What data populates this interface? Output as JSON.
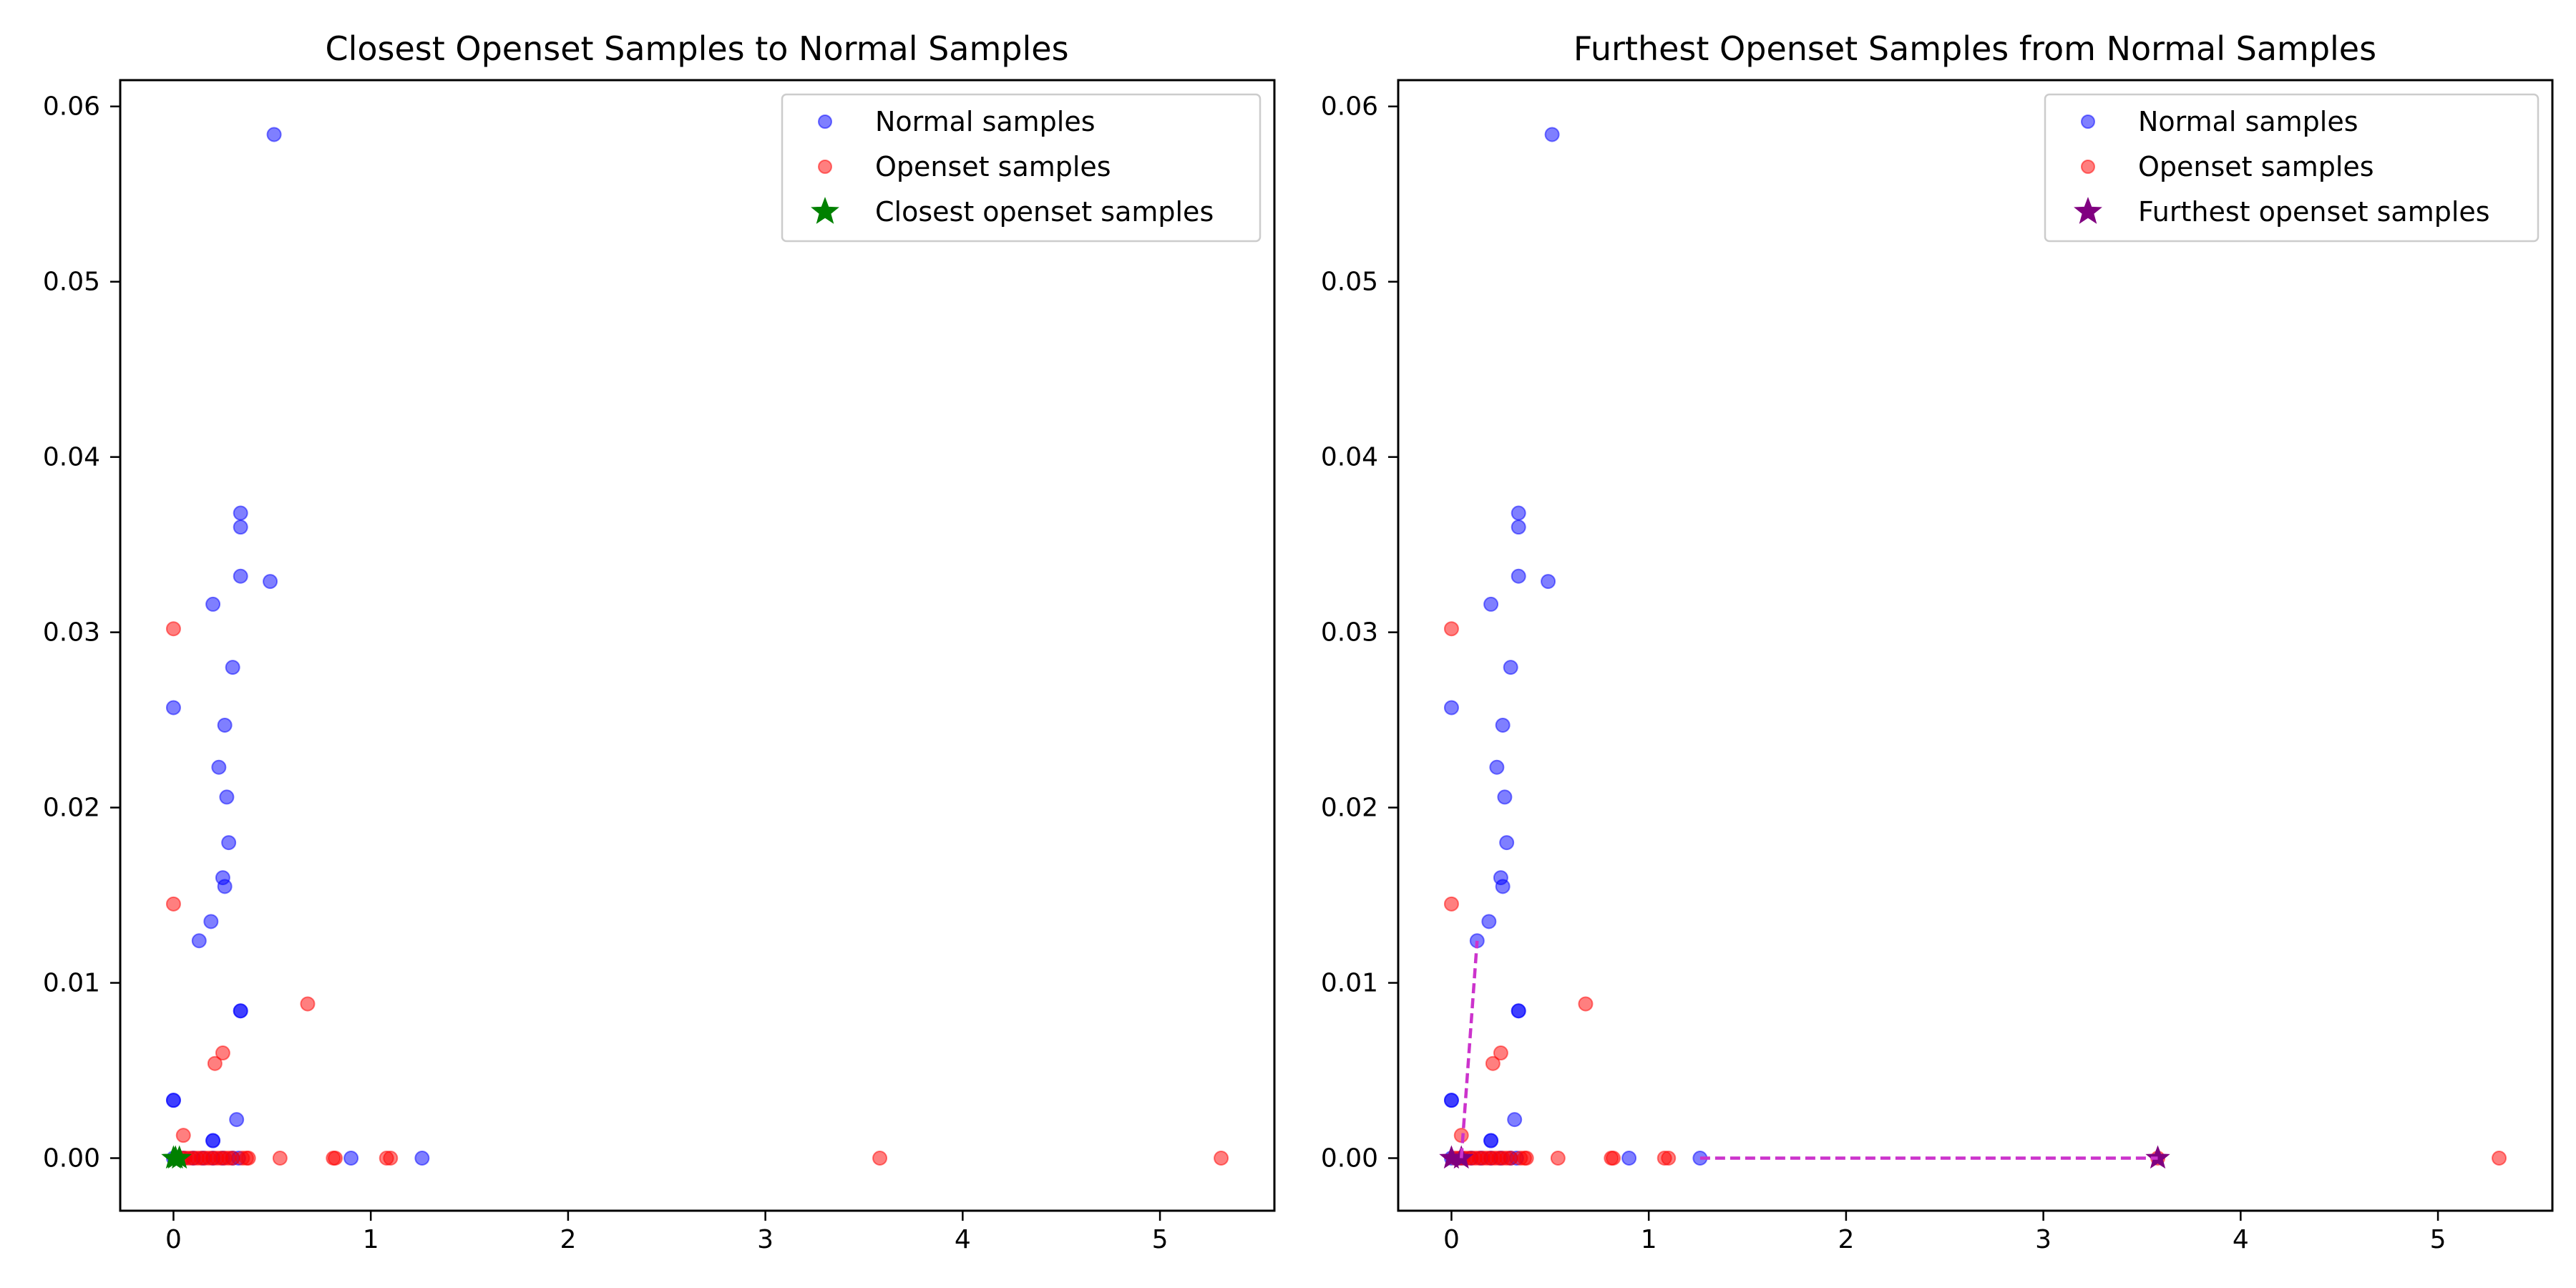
{
  "chart_data": [
    {
      "type": "scatter",
      "title": "Closest Openset Samples to Normal Samples",
      "xlabel": "",
      "ylabel": "",
      "xlim": [
        -0.27,
        5.58
      ],
      "ylim": [
        -0.003,
        0.0615
      ],
      "xticks": [
        0,
        1,
        2,
        3,
        4,
        5
      ],
      "xtick_labels": [
        "0",
        "1",
        "2",
        "3",
        "4",
        "5"
      ],
      "yticks": [
        0.0,
        0.01,
        0.02,
        0.03,
        0.04,
        0.05,
        0.06
      ],
      "ytick_labels": [
        "0.00",
        "0.01",
        "0.02",
        "0.03",
        "0.04",
        "0.05",
        "0.06"
      ],
      "grid": false,
      "legend_position": "top-right",
      "series": [
        {
          "name": "Normal samples",
          "marker": "circle",
          "color": "#0000ff",
          "alpha": 0.5,
          "points": [
            [
              0.51,
              0.0584
            ],
            [
              0.34,
              0.0368
            ],
            [
              0.34,
              0.036
            ],
            [
              0.34,
              0.0332
            ],
            [
              0.49,
              0.0329
            ],
            [
              0.2,
              0.0316
            ],
            [
              0.3,
              0.028
            ],
            [
              0.0,
              0.0257
            ],
            [
              0.26,
              0.0247
            ],
            [
              0.23,
              0.0223
            ],
            [
              0.27,
              0.0206
            ],
            [
              0.28,
              0.018
            ],
            [
              0.25,
              0.016
            ],
            [
              0.26,
              0.0155
            ],
            [
              0.19,
              0.0135
            ],
            [
              0.13,
              0.0124
            ],
            [
              0.34,
              0.0084
            ],
            [
              0.34,
              0.0084
            ],
            [
              0.0,
              0.0033
            ],
            [
              0.0,
              0.0033
            ],
            [
              0.32,
              0.0022
            ],
            [
              0.2,
              0.001
            ],
            [
              0.2,
              0.001
            ],
            [
              0.0,
              0.0
            ],
            [
              0.05,
              0.0
            ],
            [
              0.1,
              0.0
            ],
            [
              0.15,
              0.0
            ],
            [
              0.2,
              0.0
            ],
            [
              0.25,
              0.0
            ],
            [
              0.3,
              0.0
            ],
            [
              0.33,
              0.0
            ],
            [
              0.9,
              0.0
            ],
            [
              1.26,
              0.0
            ]
          ]
        },
        {
          "name": "Openset samples",
          "marker": "circle",
          "color": "#ff0000",
          "alpha": 0.5,
          "points": [
            [
              0.0,
              0.0302
            ],
            [
              0.0,
              0.0145
            ],
            [
              0.68,
              0.0088
            ],
            [
              0.25,
              0.006
            ],
            [
              0.21,
              0.0054
            ],
            [
              0.05,
              0.0013
            ],
            [
              0.02,
              0.0
            ],
            [
              0.04,
              0.0
            ],
            [
              0.06,
              0.0
            ],
            [
              0.08,
              0.0
            ],
            [
              0.1,
              0.0
            ],
            [
              0.12,
              0.0
            ],
            [
              0.14,
              0.0
            ],
            [
              0.16,
              0.0
            ],
            [
              0.18,
              0.0
            ],
            [
              0.2,
              0.0
            ],
            [
              0.22,
              0.0
            ],
            [
              0.24,
              0.0
            ],
            [
              0.26,
              0.0
            ],
            [
              0.28,
              0.0
            ],
            [
              0.3,
              0.0
            ],
            [
              0.35,
              0.0
            ],
            [
              0.37,
              0.0
            ],
            [
              0.38,
              0.0
            ],
            [
              0.54,
              0.0
            ],
            [
              0.81,
              0.0
            ],
            [
              0.82,
              0.0
            ],
            [
              1.08,
              0.0
            ],
            [
              1.1,
              0.0
            ],
            [
              3.58,
              0.0
            ],
            [
              5.31,
              0.0
            ]
          ]
        },
        {
          "name": "Closest openset samples",
          "marker": "star",
          "color": "#008000",
          "alpha": 1,
          "points": [
            [
              0.0,
              0.0
            ],
            [
              0.01,
              0.0
            ],
            [
              0.03,
              0.0
            ]
          ]
        }
      ],
      "lines": []
    },
    {
      "type": "scatter",
      "title": "Furthest Openset Samples from Normal Samples",
      "xlabel": "",
      "ylabel": "",
      "xlim": [
        -0.27,
        5.58
      ],
      "ylim": [
        -0.003,
        0.0615
      ],
      "xticks": [
        0,
        1,
        2,
        3,
        4,
        5
      ],
      "xtick_labels": [
        "0",
        "1",
        "2",
        "3",
        "4",
        "5"
      ],
      "yticks": [
        0.0,
        0.01,
        0.02,
        0.03,
        0.04,
        0.05,
        0.06
      ],
      "ytick_labels": [
        "0.00",
        "0.01",
        "0.02",
        "0.03",
        "0.04",
        "0.05",
        "0.06"
      ],
      "grid": false,
      "legend_position": "top-right",
      "series": [
        {
          "name": "Normal samples",
          "marker": "circle",
          "color": "#0000ff",
          "alpha": 0.5,
          "points": [
            [
              0.51,
              0.0584
            ],
            [
              0.34,
              0.0368
            ],
            [
              0.34,
              0.036
            ],
            [
              0.34,
              0.0332
            ],
            [
              0.49,
              0.0329
            ],
            [
              0.2,
              0.0316
            ],
            [
              0.3,
              0.028
            ],
            [
              0.0,
              0.0257
            ],
            [
              0.26,
              0.0247
            ],
            [
              0.23,
              0.0223
            ],
            [
              0.27,
              0.0206
            ],
            [
              0.28,
              0.018
            ],
            [
              0.25,
              0.016
            ],
            [
              0.26,
              0.0155
            ],
            [
              0.19,
              0.0135
            ],
            [
              0.13,
              0.0124
            ],
            [
              0.34,
              0.0084
            ],
            [
              0.34,
              0.0084
            ],
            [
              0.0,
              0.0033
            ],
            [
              0.0,
              0.0033
            ],
            [
              0.32,
              0.0022
            ],
            [
              0.2,
              0.001
            ],
            [
              0.2,
              0.001
            ],
            [
              0.0,
              0.0
            ],
            [
              0.05,
              0.0
            ],
            [
              0.1,
              0.0
            ],
            [
              0.15,
              0.0
            ],
            [
              0.2,
              0.0
            ],
            [
              0.25,
              0.0
            ],
            [
              0.3,
              0.0
            ],
            [
              0.33,
              0.0
            ],
            [
              0.9,
              0.0
            ],
            [
              1.26,
              0.0
            ]
          ]
        },
        {
          "name": "Openset samples",
          "marker": "circle",
          "color": "#ff0000",
          "alpha": 0.5,
          "points": [
            [
              0.0,
              0.0302
            ],
            [
              0.0,
              0.0145
            ],
            [
              0.68,
              0.0088
            ],
            [
              0.25,
              0.006
            ],
            [
              0.21,
              0.0054
            ],
            [
              0.05,
              0.0013
            ],
            [
              0.02,
              0.0
            ],
            [
              0.04,
              0.0
            ],
            [
              0.06,
              0.0
            ],
            [
              0.08,
              0.0
            ],
            [
              0.1,
              0.0
            ],
            [
              0.12,
              0.0
            ],
            [
              0.14,
              0.0
            ],
            [
              0.16,
              0.0
            ],
            [
              0.18,
              0.0
            ],
            [
              0.2,
              0.0
            ],
            [
              0.22,
              0.0
            ],
            [
              0.24,
              0.0
            ],
            [
              0.26,
              0.0
            ],
            [
              0.28,
              0.0
            ],
            [
              0.3,
              0.0
            ],
            [
              0.35,
              0.0
            ],
            [
              0.37,
              0.0
            ],
            [
              0.38,
              0.0
            ],
            [
              0.54,
              0.0
            ],
            [
              0.81,
              0.0
            ],
            [
              0.82,
              0.0
            ],
            [
              1.08,
              0.0
            ],
            [
              1.1,
              0.0
            ],
            [
              3.58,
              0.0
            ],
            [
              5.31,
              0.0
            ]
          ]
        },
        {
          "name": "Furthest openset samples",
          "marker": "star",
          "color": "#800080",
          "alpha": 1,
          "points": [
            [
              0.0,
              0.0
            ],
            [
              0.05,
              0.0
            ],
            [
              3.58,
              0.0
            ]
          ]
        }
      ],
      "lines": [
        {
          "color": "#cc33cc",
          "style": "dashed",
          "x": [
            0.05,
            0.13
          ],
          "y": [
            0.0,
            0.0124
          ]
        },
        {
          "color": "#cc33cc",
          "style": "dashed",
          "x": [
            1.26,
            3.58
          ],
          "y": [
            0.0,
            0.0
          ]
        }
      ]
    }
  ]
}
